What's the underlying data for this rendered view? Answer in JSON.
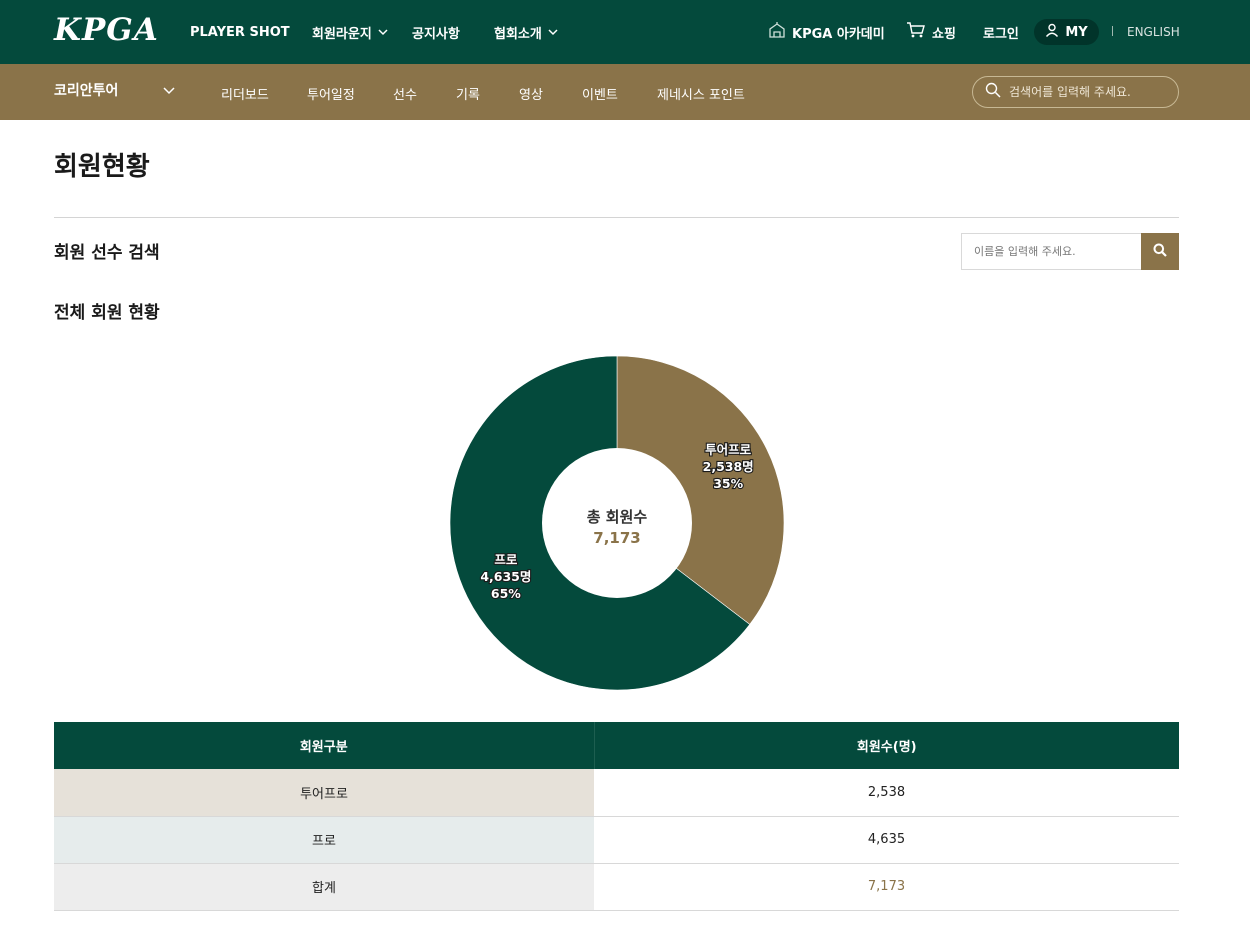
{
  "header": {
    "logo": "KPGA",
    "nav": [
      {
        "label": "PLAYER SHOT",
        "dropdown": false
      },
      {
        "label": "회원라운지",
        "dropdown": true
      },
      {
        "label": "공지사항",
        "dropdown": false
      },
      {
        "label": "협회소개",
        "dropdown": true
      }
    ],
    "academy_label": "KPGA 아카데미",
    "shopping_label": "쇼핑",
    "login_label": "로그인",
    "my_label": "MY",
    "english_label": "ENGLISH"
  },
  "subnav": {
    "tour_label": "코리안투어",
    "items": [
      "리더보드",
      "투어일정",
      "선수",
      "기록",
      "영상",
      "이벤트",
      "제네시스 포인트"
    ],
    "search_placeholder": "검색어를 입력해 주세요."
  },
  "page": {
    "title": "회원현황",
    "member_search_title": "회원 선수 검색",
    "member_search_placeholder": "이름을 입력해 주세요.",
    "overview_title": "전체 회원 현황"
  },
  "chart_data": {
    "type": "pie",
    "variant": "donut",
    "center_label": "총 회원수",
    "center_value": "7,173",
    "slices": [
      {
        "name": "투어프로",
        "value": 2538,
        "value_label": "2,538명",
        "percent_label": "35%",
        "color": "#8a7349"
      },
      {
        "name": "프로",
        "value": 4635,
        "value_label": "4,635명",
        "percent_label": "65%",
        "color": "#044a3c"
      }
    ]
  },
  "table": {
    "headers": [
      "회원구분",
      "회원수(명)"
    ],
    "rows": [
      [
        "투어프로",
        "2,538"
      ],
      [
        "프로",
        "4,635"
      ],
      [
        "합계",
        "7,173"
      ]
    ]
  },
  "colors": {
    "primary_green": "#044a3c",
    "accent_brown": "#8a7349"
  }
}
